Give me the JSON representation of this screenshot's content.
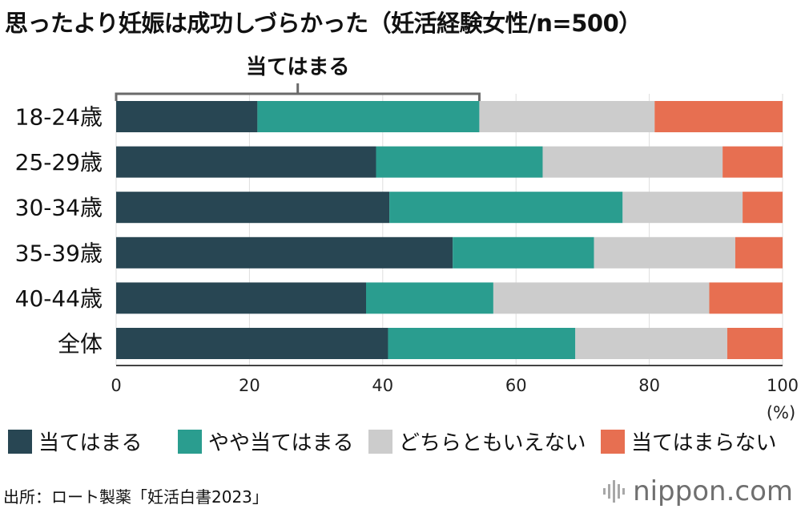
{
  "title": "思ったより妊娠は成功しづらかった（妊活経験女性/n=500）",
  "bracket_label": "当てはまる",
  "unit_label": "(%)",
  "source": "出所：ロート製薬「妊活白書2023」",
  "brand": "nippon.com",
  "colors": {
    "background": "#ffffff",
    "grid": "#dedede",
    "axis": "#444444",
    "bracket": "#6a6a6a"
  },
  "legend": [
    {
      "label": "当てはまる",
      "color": "#284653"
    },
    {
      "label": "やや当てはまる",
      "color": "#2a9d8f"
    },
    {
      "label": "どちらともいえない",
      "color": "#cccccc"
    },
    {
      "label": "当てはまらない",
      "color": "#e76f51"
    }
  ],
  "chart_data": {
    "type": "bar",
    "orientation": "horizontal",
    "stacked": true,
    "title": "思ったより妊娠は成功しづらかった（妊活経験女性/n=500）",
    "xlabel": "(%)",
    "ylabel": "",
    "xlim": [
      0,
      100
    ],
    "xticks": [
      0,
      20,
      40,
      60,
      80,
      100
    ],
    "grid": true,
    "legend_position": "bottom",
    "categories": [
      "18-24歳",
      "25-29歳",
      "30-34歳",
      "35-39歳",
      "40-44歳",
      "全体"
    ],
    "series": [
      {
        "name": "当てはまる",
        "color": "#284653",
        "values": [
          21.2,
          39.0,
          41.0,
          50.5,
          37.5,
          40.8
        ]
      },
      {
        "name": "やや当てはまる",
        "color": "#2a9d8f",
        "values": [
          33.3,
          25.0,
          35.0,
          21.2,
          19.1,
          28.1
        ]
      },
      {
        "name": "どちらともいえない",
        "color": "#cccccc",
        "values": [
          26.3,
          27.0,
          18.0,
          21.2,
          32.4,
          22.8
        ]
      },
      {
        "name": "当てはまらない",
        "color": "#e76f51",
        "values": [
          19.2,
          9.0,
          6.0,
          7.1,
          11.0,
          8.3
        ]
      }
    ]
  }
}
